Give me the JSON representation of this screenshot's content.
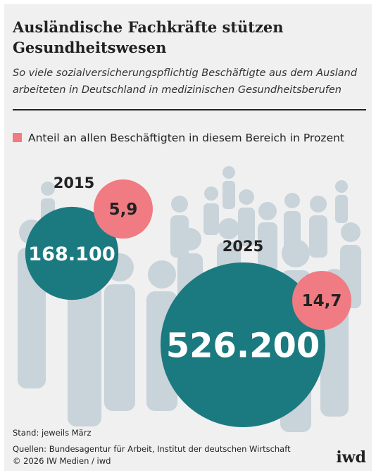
{
  "chart_data": {
    "type": "bubble",
    "title": "Ausländische Fachkräfte stützen Gesundheitswesen",
    "subtitle": "So viele sozialversicherungspflichtig Beschäftigte aus dem Ausland arbeiteten in Deutschland in medizinischen Gesundheitsberufen",
    "categories": [
      "2015",
      "2025"
    ],
    "series": [
      {
        "color": "#1b7a80",
        "values": [
          168100,
          526200
        ],
        "value_labels": [
          "168.100",
          "526.200"
        ]
      },
      {
        "name": "Anteil an allen Beschäftigten in diesem Bereich in Prozent",
        "color": "#f07b82",
        "values": [
          5.9,
          14.7
        ],
        "value_labels": [
          "5,9",
          "14,7"
        ]
      }
    ],
    "notes": [
      "Stand: jeweils März",
      "Quellen: Bundesagentur für Arbeit, Institut der deutschen Wirtschaft",
      "© 2026 IW Medien / iwd"
    ],
    "brand": "iwd"
  }
}
